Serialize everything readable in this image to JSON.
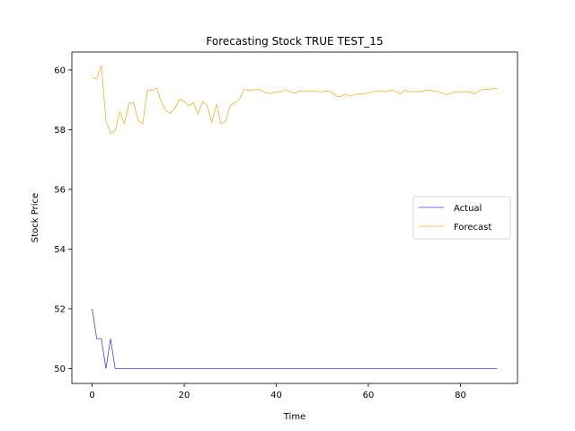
{
  "chart_data": {
    "type": "line",
    "title": "Forecasting Stock TRUE TEST_15",
    "xlabel": "Time",
    "ylabel": "Stock Price",
    "xlim": [
      -4.4,
      92.4
    ],
    "ylim": [
      49.5,
      60.6
    ],
    "xticks": [
      0,
      20,
      40,
      60,
      80
    ],
    "yticks": [
      50,
      52,
      54,
      56,
      58,
      60
    ],
    "grid": false,
    "legend_position": "center-right",
    "series": [
      {
        "name": "Actual",
        "color": "#4444dd",
        "x": [
          0,
          1,
          2,
          3,
          4,
          5,
          6,
          7,
          8,
          9,
          10,
          11,
          12,
          13,
          14,
          15,
          16,
          17,
          18,
          19,
          20,
          21,
          22,
          23,
          24,
          25,
          26,
          27,
          28,
          29,
          30,
          31,
          32,
          33,
          34,
          35,
          36,
          37,
          38,
          39,
          40,
          41,
          42,
          43,
          44,
          45,
          46,
          47,
          48,
          49,
          50,
          51,
          52,
          53,
          54,
          55,
          56,
          57,
          58,
          59,
          60,
          61,
          62,
          63,
          64,
          65,
          66,
          67,
          68,
          69,
          70,
          71,
          72,
          73,
          74,
          75,
          76,
          77,
          78,
          79,
          80,
          81,
          82,
          83,
          84,
          85,
          86,
          87,
          88
        ],
        "values": [
          52,
          51,
          51,
          50,
          51,
          50,
          50,
          50,
          50,
          50,
          50,
          50,
          50,
          50,
          50,
          50,
          50,
          50,
          50,
          50,
          50,
          50,
          50,
          50,
          50,
          50,
          50,
          50,
          50,
          50,
          50,
          50,
          50,
          50,
          50,
          50,
          50,
          50,
          50,
          50,
          50,
          50,
          50,
          50,
          50,
          50,
          50,
          50,
          50,
          50,
          50,
          50,
          50,
          50,
          50,
          50,
          50,
          50,
          50,
          50,
          50,
          50,
          50,
          50,
          50,
          50,
          50,
          50,
          50,
          50,
          50,
          50,
          50,
          50,
          50,
          50,
          50,
          50,
          50,
          50,
          50,
          50,
          50,
          50,
          50,
          50,
          50,
          50,
          50
        ]
      },
      {
        "name": "Forecast",
        "color": "#f0b030",
        "x": [
          0,
          1,
          2,
          3,
          4,
          5,
          6,
          7,
          8,
          9,
          10,
          11,
          12,
          13,
          14,
          15,
          16,
          17,
          18,
          19,
          20,
          21,
          22,
          23,
          24,
          25,
          26,
          27,
          28,
          29,
          30,
          31,
          32,
          33,
          34,
          35,
          36,
          37,
          38,
          39,
          40,
          41,
          42,
          43,
          44,
          45,
          46,
          47,
          48,
          49,
          50,
          51,
          52,
          53,
          54,
          55,
          56,
          57,
          58,
          59,
          60,
          61,
          62,
          63,
          64,
          65,
          66,
          67,
          68,
          69,
          70,
          71,
          72,
          73,
          74,
          75,
          76,
          77,
          78,
          79,
          80,
          81,
          82,
          83,
          84,
          85,
          86,
          87,
          88
        ],
        "values": [
          59.75,
          59.7,
          60.15,
          58.3,
          57.88,
          57.97,
          58.6,
          58.2,
          58.88,
          58.92,
          58.3,
          58.2,
          59.33,
          59.32,
          59.4,
          58.95,
          58.63,
          58.55,
          58.72,
          59.02,
          58.95,
          58.8,
          58.9,
          58.52,
          58.95,
          58.8,
          58.25,
          58.85,
          58.2,
          58.28,
          58.82,
          58.9,
          59.02,
          59.35,
          59.32,
          59.33,
          59.37,
          59.3,
          59.22,
          59.22,
          59.27,
          59.27,
          59.35,
          59.27,
          59.22,
          59.3,
          59.28,
          59.3,
          59.3,
          59.28,
          59.27,
          59.3,
          59.26,
          59.12,
          59.1,
          59.2,
          59.12,
          59.18,
          59.2,
          59.2,
          59.23,
          59.27,
          59.3,
          59.3,
          59.27,
          59.33,
          59.28,
          59.2,
          59.32,
          59.27,
          59.28,
          59.27,
          59.3,
          59.33,
          59.3,
          59.28,
          59.22,
          59.18,
          59.22,
          59.27,
          59.27,
          59.27,
          59.27,
          59.2,
          59.3,
          59.35,
          59.35,
          59.37,
          59.38
        ]
      }
    ]
  }
}
